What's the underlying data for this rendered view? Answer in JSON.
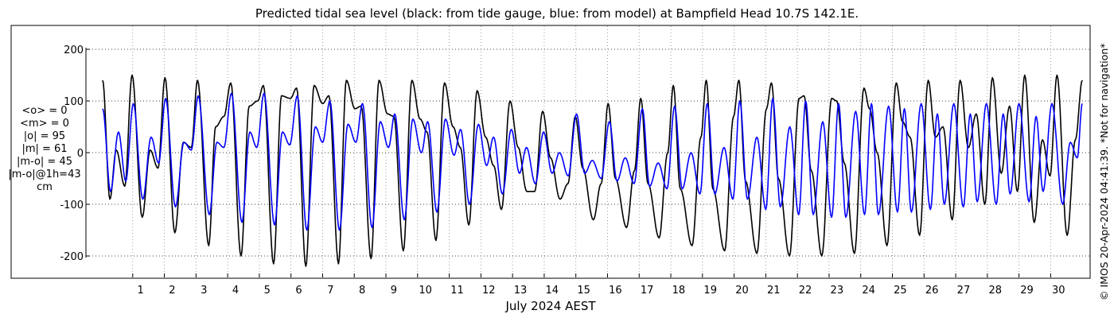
{
  "stats": {
    "mean_obs": "<o> = 0",
    "mean_model": "<m> = 0",
    "abs_obs": "|o| = 95",
    "abs_model": "|m| = 61",
    "abs_diff": "|m-o| = 45",
    "abs_diff_1h": "|m-o|@1h=43",
    "unit": "cm"
  },
  "copyright": "© IMOS 20-Apr-2024 04:41:39. *Not for navigation*",
  "colors": {
    "observed": "#000000",
    "model": "#0000ff",
    "grid": "#000000"
  },
  "chart_data": {
    "type": "line",
    "title": "Predicted tidal sea level (black: from tide gauge, blue: from model) at Bampfield Head 10.7S 142.1E.",
    "xlabel": "July 2024 AEST",
    "ylabel": "",
    "xlim": [
      0,
      31
    ],
    "ylim": [
      -240,
      240
    ],
    "yticks": [
      -200,
      -100,
      0,
      100,
      200
    ],
    "xticks": [
      1,
      2,
      3,
      4,
      5,
      6,
      7,
      8,
      9,
      10,
      11,
      12,
      13,
      14,
      15,
      16,
      17,
      18,
      19,
      20,
      21,
      22,
      23,
      24,
      25,
      26,
      27,
      28,
      29,
      30
    ],
    "grid": "dotted",
    "legend": "none",
    "series": [
      {
        "label": "black: from tide gauge",
        "color": "#000000",
        "peaks": [
          {
            "day": 0.05,
            "height": 140
          },
          {
            "day": 0.28,
            "height": -90
          },
          {
            "day": 0.48,
            "height": 5
          },
          {
            "day": 0.75,
            "height": -65
          },
          {
            "day": 0.98,
            "height": 150
          },
          {
            "day": 1.3,
            "height": -125
          },
          {
            "day": 1.55,
            "height": 5
          },
          {
            "day": 1.8,
            "height": -30
          },
          {
            "day": 2.02,
            "height": 145
          },
          {
            "day": 2.33,
            "height": -155
          },
          {
            "day": 2.6,
            "height": 20
          },
          {
            "day": 2.85,
            "height": 10
          },
          {
            "day": 3.05,
            "height": 140
          },
          {
            "day": 3.4,
            "height": -180
          },
          {
            "day": 3.62,
            "height": 50
          },
          {
            "day": 3.88,
            "height": 70
          },
          {
            "day": 4.1,
            "height": 135
          },
          {
            "day": 4.42,
            "height": -200
          },
          {
            "day": 4.68,
            "height": 90
          },
          {
            "day": 4.95,
            "height": 100
          },
          {
            "day": 5.13,
            "height": 130
          },
          {
            "day": 5.45,
            "height": -215
          },
          {
            "day": 5.7,
            "height": 110
          },
          {
            "day": 5.98,
            "height": 105
          },
          {
            "day": 6.18,
            "height": 125
          },
          {
            "day": 6.47,
            "height": -220
          },
          {
            "day": 6.73,
            "height": 130
          },
          {
            "day": 7.0,
            "height": 95
          },
          {
            "day": 7.2,
            "height": 110
          },
          {
            "day": 7.5,
            "height": -215
          },
          {
            "day": 7.75,
            "height": 140
          },
          {
            "day": 8.02,
            "height": 85
          },
          {
            "day": 8.22,
            "height": 90
          },
          {
            "day": 8.53,
            "height": -205
          },
          {
            "day": 8.78,
            "height": 140
          },
          {
            "day": 9.05,
            "height": 75
          },
          {
            "day": 9.25,
            "height": 70
          },
          {
            "day": 9.55,
            "height": -190
          },
          {
            "day": 9.82,
            "height": 140
          },
          {
            "day": 10.08,
            "height": 65
          },
          {
            "day": 10.3,
            "height": 40
          },
          {
            "day": 10.58,
            "height": -170
          },
          {
            "day": 10.85,
            "height": 135
          },
          {
            "day": 11.12,
            "height": 50
          },
          {
            "day": 11.35,
            "height": 10
          },
          {
            "day": 11.62,
            "height": -140
          },
          {
            "day": 11.88,
            "height": 120
          },
          {
            "day": 12.15,
            "height": 30
          },
          {
            "day": 12.4,
            "height": -25
          },
          {
            "day": 12.65,
            "height": -110
          },
          {
            "day": 12.92,
            "height": 100
          },
          {
            "day": 13.18,
            "height": 10
          },
          {
            "day": 13.45,
            "height": -75
          },
          {
            "day": 13.7,
            "height": -75
          },
          {
            "day": 13.95,
            "height": 80
          },
          {
            "day": 14.2,
            "height": -10
          },
          {
            "day": 14.5,
            "height": -90
          },
          {
            "day": 14.75,
            "height": -60
          },
          {
            "day": 14.98,
            "height": 70
          },
          {
            "day": 15.22,
            "height": -30
          },
          {
            "day": 15.55,
            "height": -130
          },
          {
            "day": 15.8,
            "height": -60
          },
          {
            "day": 16.02,
            "height": 95
          },
          {
            "day": 16.25,
            "height": -50
          },
          {
            "day": 16.6,
            "height": -145
          },
          {
            "day": 16.85,
            "height": -35
          },
          {
            "day": 17.05,
            "height": 105
          },
          {
            "day": 17.28,
            "height": -60
          },
          {
            "day": 17.63,
            "height": -165
          },
          {
            "day": 17.9,
            "height": 0
          },
          {
            "day": 18.08,
            "height": 130
          },
          {
            "day": 18.3,
            "height": -70
          },
          {
            "day": 18.67,
            "height": -180
          },
          {
            "day": 18.95,
            "height": 30
          },
          {
            "day": 19.12,
            "height": 140
          },
          {
            "day": 19.33,
            "height": -70
          },
          {
            "day": 19.7,
            "height": -190
          },
          {
            "day": 19.98,
            "height": 70
          },
          {
            "day": 20.15,
            "height": 140
          },
          {
            "day": 20.36,
            "height": -55
          },
          {
            "day": 20.72,
            "height": -195
          },
          {
            "day": 21.02,
            "height": 85
          },
          {
            "day": 21.18,
            "height": 135
          },
          {
            "day": 21.4,
            "height": -50
          },
          {
            "day": 21.75,
            "height": -200
          },
          {
            "day": 22.05,
            "height": 105
          },
          {
            "day": 22.21,
            "height": 110
          },
          {
            "day": 22.44,
            "height": -35
          },
          {
            "day": 22.77,
            "height": -200
          },
          {
            "day": 23.08,
            "height": 105
          },
          {
            "day": 23.24,
            "height": 100
          },
          {
            "day": 23.48,
            "height": -20
          },
          {
            "day": 23.8,
            "height": -195
          },
          {
            "day": 24.1,
            "height": 125
          },
          {
            "day": 24.28,
            "height": 85
          },
          {
            "day": 24.52,
            "height": 0
          },
          {
            "day": 24.83,
            "height": -180
          },
          {
            "day": 25.12,
            "height": 135
          },
          {
            "day": 25.32,
            "height": 60
          },
          {
            "day": 25.56,
            "height": 30
          },
          {
            "day": 25.86,
            "height": -160
          },
          {
            "day": 26.13,
            "height": 140
          },
          {
            "day": 26.36,
            "height": 30
          },
          {
            "day": 26.6,
            "height": 50
          },
          {
            "day": 26.89,
            "height": -130
          },
          {
            "day": 27.14,
            "height": 140
          },
          {
            "day": 27.4,
            "height": 10
          },
          {
            "day": 27.65,
            "height": 75
          },
          {
            "day": 27.92,
            "height": -100
          },
          {
            "day": 28.16,
            "height": 145
          },
          {
            "day": 28.44,
            "height": -40
          },
          {
            "day": 28.7,
            "height": 90
          },
          {
            "day": 28.95,
            "height": -75
          },
          {
            "day": 29.18,
            "height": 150
          },
          {
            "day": 29.48,
            "height": -135
          },
          {
            "day": 29.74,
            "height": 25
          },
          {
            "day": 29.98,
            "height": -45
          },
          {
            "day": 30.2,
            "height": 150
          },
          {
            "day": 30.52,
            "height": -160
          },
          {
            "day": 30.78,
            "height": 25
          },
          {
            "day": 31.0,
            "height": 140
          }
        ]
      },
      {
        "label": "blue: from model",
        "color": "#0000ff",
        "peaks": [
          {
            "day": 0.05,
            "height": 85
          },
          {
            "day": 0.3,
            "height": -75
          },
          {
            "day": 0.55,
            "height": 40
          },
          {
            "day": 0.78,
            "height": -55
          },
          {
            "day": 1.02,
            "height": 95
          },
          {
            "day": 1.32,
            "height": -90
          },
          {
            "day": 1.58,
            "height": 30
          },
          {
            "day": 1.82,
            "height": -20
          },
          {
            "day": 2.04,
            "height": 105
          },
          {
            "day": 2.35,
            "height": -105
          },
          {
            "day": 2.62,
            "height": 20
          },
          {
            "day": 2.85,
            "height": 5
          },
          {
            "day": 3.07,
            "height": 110
          },
          {
            "day": 3.42,
            "height": -120
          },
          {
            "day": 3.66,
            "height": 20
          },
          {
            "day": 3.88,
            "height": 10
          },
          {
            "day": 4.12,
            "height": 115
          },
          {
            "day": 4.45,
            "height": -135
          },
          {
            "day": 4.7,
            "height": 40
          },
          {
            "day": 4.92,
            "height": 10
          },
          {
            "day": 5.15,
            "height": 115
          },
          {
            "day": 5.48,
            "height": -140
          },
          {
            "day": 5.73,
            "height": 40
          },
          {
            "day": 5.96,
            "height": 15
          },
          {
            "day": 6.2,
            "height": 110
          },
          {
            "day": 6.5,
            "height": -150
          },
          {
            "day": 6.77,
            "height": 50
          },
          {
            "day": 7.0,
            "height": 20
          },
          {
            "day": 7.23,
            "height": 100
          },
          {
            "day": 7.53,
            "height": -150
          },
          {
            "day": 7.8,
            "height": 55
          },
          {
            "day": 8.05,
            "height": 20
          },
          {
            "day": 8.26,
            "height": 95
          },
          {
            "day": 8.56,
            "height": -145
          },
          {
            "day": 8.82,
            "height": 60
          },
          {
            "day": 9.08,
            "height": 10
          },
          {
            "day": 9.28,
            "height": 75
          },
          {
            "day": 9.58,
            "height": -130
          },
          {
            "day": 9.85,
            "height": 65
          },
          {
            "day": 10.12,
            "height": 0
          },
          {
            "day": 10.32,
            "height": 60
          },
          {
            "day": 10.61,
            "height": -115
          },
          {
            "day": 10.88,
            "height": 65
          },
          {
            "day": 11.15,
            "height": -5
          },
          {
            "day": 11.36,
            "height": 45
          },
          {
            "day": 11.64,
            "height": -100
          },
          {
            "day": 11.92,
            "height": 55
          },
          {
            "day": 12.18,
            "height": -25
          },
          {
            "day": 12.4,
            "height": 30
          },
          {
            "day": 12.68,
            "height": -80
          },
          {
            "day": 12.96,
            "height": 45
          },
          {
            "day": 13.22,
            "height": -40
          },
          {
            "day": 13.44,
            "height": 10
          },
          {
            "day": 13.72,
            "height": -60
          },
          {
            "day": 13.98,
            "height": 40
          },
          {
            "day": 14.25,
            "height": -40
          },
          {
            "day": 14.48,
            "height": 0
          },
          {
            "day": 14.76,
            "height": -45
          },
          {
            "day": 15.02,
            "height": 75
          },
          {
            "day": 15.28,
            "height": -40
          },
          {
            "day": 15.52,
            "height": -15
          },
          {
            "day": 15.8,
            "height": -50
          },
          {
            "day": 16.06,
            "height": 60
          },
          {
            "day": 16.3,
            "height": -55
          },
          {
            "day": 16.56,
            "height": -10
          },
          {
            "day": 16.84,
            "height": -60
          },
          {
            "day": 17.1,
            "height": 85
          },
          {
            "day": 17.33,
            "height": -65
          },
          {
            "day": 17.6,
            "height": -20
          },
          {
            "day": 17.88,
            "height": -70
          },
          {
            "day": 18.12,
            "height": 90
          },
          {
            "day": 18.36,
            "height": -70
          },
          {
            "day": 18.64,
            "height": 0
          },
          {
            "day": 18.92,
            "height": -80
          },
          {
            "day": 19.15,
            "height": 95
          },
          {
            "day": 19.39,
            "height": -80
          },
          {
            "day": 19.68,
            "height": 10
          },
          {
            "day": 19.96,
            "height": -90
          },
          {
            "day": 20.18,
            "height": 100
          },
          {
            "day": 20.42,
            "height": -90
          },
          {
            "day": 20.72,
            "height": 30
          },
          {
            "day": 21.0,
            "height": -110
          },
          {
            "day": 21.22,
            "height": 105
          },
          {
            "day": 21.46,
            "height": -105
          },
          {
            "day": 21.76,
            "height": 50
          },
          {
            "day": 22.04,
            "height": -120
          },
          {
            "day": 22.26,
            "height": 100
          },
          {
            "day": 22.5,
            "height": -120
          },
          {
            "day": 22.8,
            "height": 60
          },
          {
            "day": 23.08,
            "height": -125
          },
          {
            "day": 23.3,
            "height": 95
          },
          {
            "day": 23.53,
            "height": -125
          },
          {
            "day": 23.84,
            "height": 80
          },
          {
            "day": 24.12,
            "height": -120
          },
          {
            "day": 24.34,
            "height": 95
          },
          {
            "day": 24.56,
            "height": -120
          },
          {
            "day": 24.88,
            "height": 90
          },
          {
            "day": 25.16,
            "height": -115
          },
          {
            "day": 25.38,
            "height": 85
          },
          {
            "day": 25.6,
            "height": -115
          },
          {
            "day": 25.91,
            "height": 95
          },
          {
            "day": 26.2,
            "height": -110
          },
          {
            "day": 26.42,
            "height": 75
          },
          {
            "day": 26.64,
            "height": -100
          },
          {
            "day": 26.94,
            "height": 95
          },
          {
            "day": 27.24,
            "height": -105
          },
          {
            "day": 27.46,
            "height": 75
          },
          {
            "day": 27.68,
            "height": -95
          },
          {
            "day": 27.97,
            "height": 95
          },
          {
            "day": 28.28,
            "height": -100
          },
          {
            "day": 28.5,
            "height": 75
          },
          {
            "day": 28.72,
            "height": -80
          },
          {
            "day": 29.0,
            "height": 95
          },
          {
            "day": 29.32,
            "height": -95
          },
          {
            "day": 29.54,
            "height": 70
          },
          {
            "day": 29.76,
            "height": -75
          },
          {
            "day": 30.04,
            "height": 95
          },
          {
            "day": 30.38,
            "height": -100
          },
          {
            "day": 30.62,
            "height": 20
          },
          {
            "day": 30.84,
            "height": -10
          },
          {
            "day": 31.0,
            "height": 95
          }
        ]
      }
    ]
  }
}
